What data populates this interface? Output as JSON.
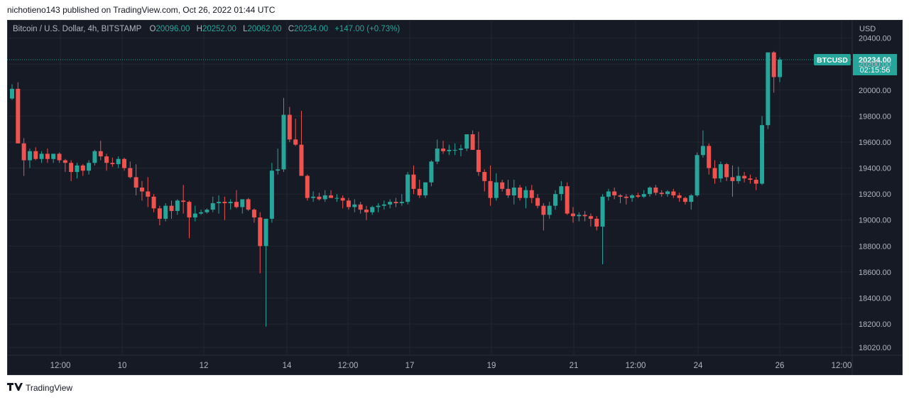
{
  "header": {
    "published": "nichotieno143 published on TradingView.com, Oct 26, 2022 01:44 UTC"
  },
  "legend": {
    "symbol": "Bitcoin / U.S. Dollar, 4h, BITSTAMP",
    "o_label": "O",
    "o_value": "20096.00",
    "h_label": "H",
    "h_value": "20252.00",
    "l_label": "L",
    "l_value": "20062.00",
    "c_label": "C",
    "c_value": "20234.00",
    "change": "+147.00 (+0.73%)"
  },
  "footer": {
    "logo_icon": "tradingview-logo-icon",
    "brand": "TradingView"
  },
  "colors": {
    "up": "#26a69a",
    "down": "#ef5350",
    "background": "#161a25",
    "grid": "#22262f",
    "axis_text": "#b2b5be"
  },
  "chart_data": {
    "type": "candlestick",
    "yaxis_unit": "USD",
    "ylim": [
      17960,
      20540
    ],
    "yticks": [
      "20400.00",
      "20200.00",
      "20000.00",
      "19800.00",
      "19600.00",
      "19400.00",
      "19200.00",
      "19000.00",
      "18800.00",
      "18600.00",
      "18400.00",
      "18200.00",
      "18020.00"
    ],
    "xticks": [
      "12:00",
      "10",
      "12",
      "14",
      "12:00",
      "17",
      "19",
      "21",
      "12:00",
      "24",
      "26",
      "12:00"
    ],
    "last_price": {
      "symbol": "BTCUSD",
      "price": "20234.00",
      "countdown": "02:15:56",
      "value": 20234
    },
    "candles": [
      [
        19935,
        20045,
        19925,
        20010
      ],
      [
        20010,
        20060,
        19590,
        19590
      ],
      [
        19590,
        19630,
        19340,
        19460
      ],
      [
        19460,
        19550,
        19400,
        19530
      ],
      [
        19530,
        19560,
        19460,
        19470
      ],
      [
        19470,
        19530,
        19440,
        19510
      ],
      [
        19510,
        19550,
        19440,
        19470
      ],
      [
        19470,
        19510,
        19440,
        19510
      ],
      [
        19510,
        19520,
        19440,
        19460
      ],
      [
        19460,
        19470,
        19370,
        19440
      ],
      [
        19440,
        19460,
        19300,
        19370
      ],
      [
        19370,
        19440,
        19320,
        19420
      ],
      [
        19420,
        19430,
        19340,
        19380
      ],
      [
        19380,
        19460,
        19350,
        19440
      ],
      [
        19440,
        19540,
        19420,
        19530
      ],
      [
        19530,
        19610,
        19460,
        19490
      ],
      [
        19490,
        19510,
        19380,
        19440
      ],
      [
        19440,
        19480,
        19410,
        19430
      ],
      [
        19430,
        19490,
        19400,
        19470
      ],
      [
        19470,
        19480,
        19380,
        19400
      ],
      [
        19400,
        19450,
        19320,
        19330
      ],
      [
        19330,
        19430,
        19190,
        19250
      ],
      [
        19250,
        19300,
        19150,
        19220
      ],
      [
        19220,
        19330,
        19100,
        19180
      ],
      [
        19180,
        19200,
        19060,
        19090
      ],
      [
        19090,
        19110,
        18960,
        19010
      ],
      [
        19010,
        19130,
        18990,
        19110
      ],
      [
        19110,
        19150,
        19010,
        19070
      ],
      [
        19070,
        19160,
        19040,
        19150
      ],
      [
        19150,
        19270,
        19050,
        19140
      ],
      [
        19140,
        19150,
        18860,
        19020
      ],
      [
        19020,
        19110,
        18990,
        19050
      ],
      [
        19050,
        19080,
        19040,
        19060
      ],
      [
        19060,
        19090,
        19050,
        19080
      ],
      [
        19080,
        19180,
        19060,
        19130
      ],
      [
        19130,
        19190,
        19050,
        19140
      ],
      [
        19140,
        19180,
        19000,
        19130
      ],
      [
        19130,
        19160,
        19080,
        19140
      ],
      [
        19140,
        19230,
        19090,
        19100
      ],
      [
        19100,
        19160,
        19050,
        19160
      ],
      [
        19160,
        19170,
        19070,
        19080
      ],
      [
        19080,
        19090,
        18980,
        19020
      ],
      [
        19020,
        19060,
        18590,
        18800
      ],
      [
        18800,
        19000,
        18180,
        19010
      ],
      [
        19010,
        19440,
        18980,
        19380
      ],
      [
        19380,
        19550,
        19350,
        19390
      ],
      [
        19390,
        19940,
        19370,
        19810
      ],
      [
        19810,
        19870,
        19600,
        19620
      ],
      [
        19620,
        19780,
        19570,
        19580
      ],
      [
        19580,
        19840,
        19340,
        19340
      ],
      [
        19340,
        19350,
        19150,
        19170
      ],
      [
        19170,
        19220,
        19140,
        19180
      ],
      [
        19180,
        19210,
        19150,
        19160
      ],
      [
        19160,
        19230,
        19140,
        19190
      ],
      [
        19190,
        19230,
        19170,
        19170
      ],
      [
        19170,
        19200,
        19140,
        19170
      ],
      [
        19170,
        19190,
        19090,
        19150
      ],
      [
        19150,
        19170,
        19080,
        19100
      ],
      [
        19100,
        19160,
        19060,
        19120
      ],
      [
        19120,
        19140,
        19050,
        19080
      ],
      [
        19080,
        19110,
        19000,
        19060
      ],
      [
        19060,
        19110,
        19040,
        19100
      ],
      [
        19100,
        19130,
        19060,
        19110
      ],
      [
        19110,
        19150,
        19080,
        19120
      ],
      [
        19120,
        19160,
        19090,
        19140
      ],
      [
        19140,
        19170,
        19100,
        19130
      ],
      [
        19130,
        19200,
        19110,
        19140
      ],
      [
        19140,
        19370,
        19120,
        19350
      ],
      [
        19350,
        19420,
        19200,
        19240
      ],
      [
        19240,
        19310,
        19170,
        19190
      ],
      [
        19190,
        19290,
        19170,
        19290
      ],
      [
        19290,
        19460,
        19260,
        19450
      ],
      [
        19450,
        19620,
        19430,
        19550
      ],
      [
        19550,
        19610,
        19510,
        19530
      ],
      [
        19530,
        19580,
        19500,
        19540
      ],
      [
        19540,
        19590,
        19500,
        19540
      ],
      [
        19540,
        19580,
        19490,
        19550
      ],
      [
        19550,
        19660,
        19530,
        19660
      ],
      [
        19660,
        19690,
        19540,
        19540
      ],
      [
        19540,
        19680,
        19340,
        19370
      ],
      [
        19370,
        19390,
        19220,
        19300
      ],
      [
        19300,
        19420,
        19110,
        19170
      ],
      [
        19170,
        19360,
        19150,
        19290
      ],
      [
        19290,
        19310,
        19220,
        19240
      ],
      [
        19240,
        19310,
        19170,
        19190
      ],
      [
        19190,
        19310,
        19120,
        19250
      ],
      [
        19250,
        19270,
        19150,
        19170
      ],
      [
        19170,
        19260,
        19090,
        19230
      ],
      [
        19230,
        19270,
        19130,
        19170
      ],
      [
        19170,
        19200,
        19090,
        19110
      ],
      [
        19110,
        19130,
        18920,
        19040
      ],
      [
        19040,
        19140,
        19010,
        19110
      ],
      [
        19110,
        19230,
        19080,
        19200
      ],
      [
        19200,
        19300,
        19150,
        19260
      ],
      [
        19260,
        19290,
        19040,
        19050
      ],
      [
        19050,
        19100,
        18980,
        19030
      ],
      [
        19030,
        19060,
        18990,
        19040
      ],
      [
        19040,
        19070,
        18990,
        19030
      ],
      [
        19030,
        19050,
        18950,
        19010
      ],
      [
        19010,
        19030,
        18920,
        18950
      ],
      [
        18950,
        19200,
        18660,
        19180
      ],
      [
        19180,
        19240,
        19150,
        19220
      ],
      [
        19220,
        19250,
        19160,
        19190
      ],
      [
        19190,
        19200,
        19130,
        19180
      ],
      [
        19180,
        19200,
        19120,
        19170
      ],
      [
        19170,
        19200,
        19140,
        19190
      ],
      [
        19190,
        19210,
        19170,
        19180
      ],
      [
        19180,
        19230,
        19170,
        19200
      ],
      [
        19200,
        19260,
        19180,
        19250
      ],
      [
        19250,
        19270,
        19190,
        19210
      ],
      [
        19210,
        19230,
        19180,
        19200
      ],
      [
        19200,
        19230,
        19180,
        19220
      ],
      [
        19220,
        19240,
        19170,
        19190
      ],
      [
        19190,
        19210,
        19140,
        19170
      ],
      [
        19170,
        19180,
        19120,
        19140
      ],
      [
        19140,
        19200,
        19080,
        19190
      ],
      [
        19190,
        19520,
        19180,
        19500
      ],
      [
        19500,
        19690,
        19480,
        19570
      ],
      [
        19570,
        19590,
        19350,
        19400
      ],
      [
        19400,
        19460,
        19280,
        19320
      ],
      [
        19320,
        19450,
        19290,
        19430
      ],
      [
        19430,
        19440,
        19300,
        19330
      ],
      [
        19330,
        19420,
        19180,
        19300
      ],
      [
        19300,
        19410,
        19280,
        19340
      ],
      [
        19340,
        19370,
        19290,
        19320
      ],
      [
        19320,
        19350,
        19280,
        19310
      ],
      [
        19310,
        19330,
        19230,
        19280
      ],
      [
        19280,
        19800,
        19270,
        19730
      ],
      [
        19730,
        20290,
        19700,
        20290
      ],
      [
        20290,
        20300,
        19980,
        20100
      ],
      [
        20100,
        20252,
        20062,
        20234
      ]
    ]
  }
}
